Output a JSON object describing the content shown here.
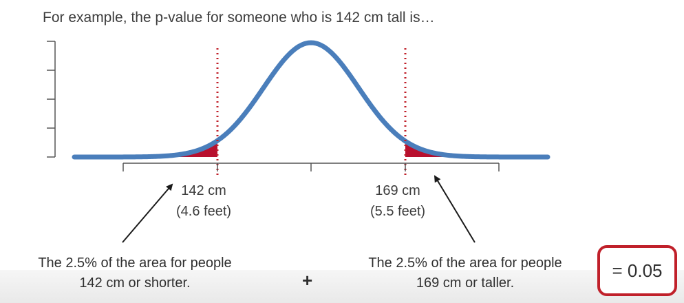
{
  "title": "For example, the p-value for someone who is 142 cm tall is…",
  "left_cutoff": {
    "value": "142 cm",
    "feet": "(4.6 feet)"
  },
  "right_cutoff": {
    "value": "169 cm",
    "feet": "(5.5 feet)"
  },
  "left_area": {
    "line1": "The 2.5% of the area for people",
    "line2": "142 cm or shorter."
  },
  "right_area": {
    "line1": "The 2.5% of the area for people",
    "line2": "169 cm or taller."
  },
  "operator": "+",
  "result": "= 0.05",
  "colors": {
    "curve": "#4a7ebb",
    "tail_fill": "#b8102e",
    "cutoff_line": "#c0202a",
    "result_border": "#c0202a",
    "axis": "#555555"
  }
}
